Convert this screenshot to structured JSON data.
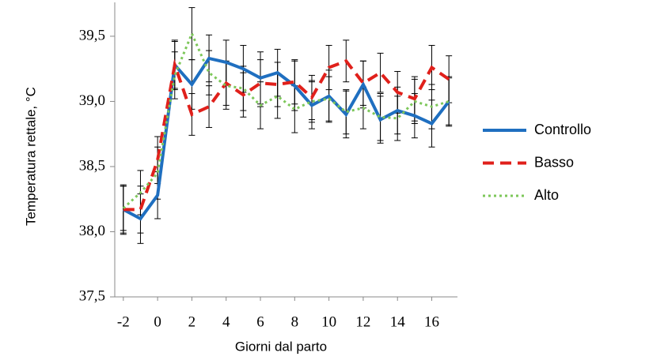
{
  "chart_data": {
    "type": "line",
    "x": [
      -2,
      -1,
      0,
      1,
      2,
      3,
      4,
      5,
      6,
      7,
      8,
      9,
      10,
      11,
      12,
      13,
      14,
      15,
      16,
      17
    ],
    "xlim": [
      -2.5,
      17.5
    ],
    "xticks": [
      -2,
      0,
      2,
      4,
      6,
      8,
      10,
      12,
      14,
      16
    ],
    "ylim": [
      37.5,
      39.76
    ],
    "yticks": [
      {
        "value": 37.5,
        "label": "37,5"
      },
      {
        "value": 38.0,
        "label": "38,0"
      },
      {
        "value": 38.5,
        "label": "38,5"
      },
      {
        "value": 39.0,
        "label": "39,0"
      },
      {
        "value": 39.5,
        "label": "39,5"
      }
    ],
    "xlabel": "Giorni dal parto",
    "ylabel": "Temperatura rettale, °C",
    "series": [
      {
        "name": "Controllo",
        "color": "#1f6fc0",
        "style": "solid",
        "values": [
          38.17,
          38.1,
          38.28,
          39.28,
          39.13,
          39.33,
          39.3,
          39.25,
          39.18,
          39.22,
          39.12,
          38.97,
          39.04,
          38.9,
          39.13,
          38.86,
          38.93,
          38.89,
          38.83,
          39.0
        ],
        "errors": [
          0.19,
          0.19,
          0.18,
          0.18,
          0.19,
          0.18,
          0.17,
          0.18,
          0.2,
          0.18,
          0.19,
          0.18,
          0.2,
          0.18,
          0.18,
          0.18,
          0.18,
          0.17,
          0.18,
          0.19
        ]
      },
      {
        "name": "Basso",
        "color": "#e0201b",
        "style": "dashed",
        "values": [
          38.17,
          38.17,
          38.55,
          39.28,
          38.9,
          38.96,
          39.14,
          39.05,
          39.14,
          39.13,
          39.15,
          39.03,
          39.26,
          39.31,
          39.14,
          39.22,
          39.07,
          39.02,
          39.26,
          39.17
        ],
        "errors": [
          0.18,
          0.18,
          0.18,
          0.19,
          0.16,
          0.16,
          0.17,
          0.17,
          0.18,
          0.17,
          0.17,
          0.17,
          0.17,
          0.16,
          0.17,
          0.15,
          0.16,
          0.17,
          0.17,
          0.18
        ]
      },
      {
        "name": "Alto",
        "color": "#7dc75a",
        "style": "dotted",
        "values": [
          38.18,
          38.3,
          38.45,
          39.2,
          39.52,
          39.22,
          39.12,
          39.1,
          38.97,
          39.04,
          38.94,
          39.0,
          39.02,
          38.92,
          38.95,
          38.88,
          38.87,
          39.0,
          38.96,
          39.0
        ],
        "errors": [
          0.17,
          0.17,
          0.2,
          0.18,
          0.2,
          0.17,
          0.18,
          0.17,
          0.18,
          0.17,
          0.18,
          0.16,
          0.17,
          0.17,
          0.16,
          0.18,
          0.17,
          0.17,
          0.17,
          0.18
        ]
      }
    ]
  }
}
